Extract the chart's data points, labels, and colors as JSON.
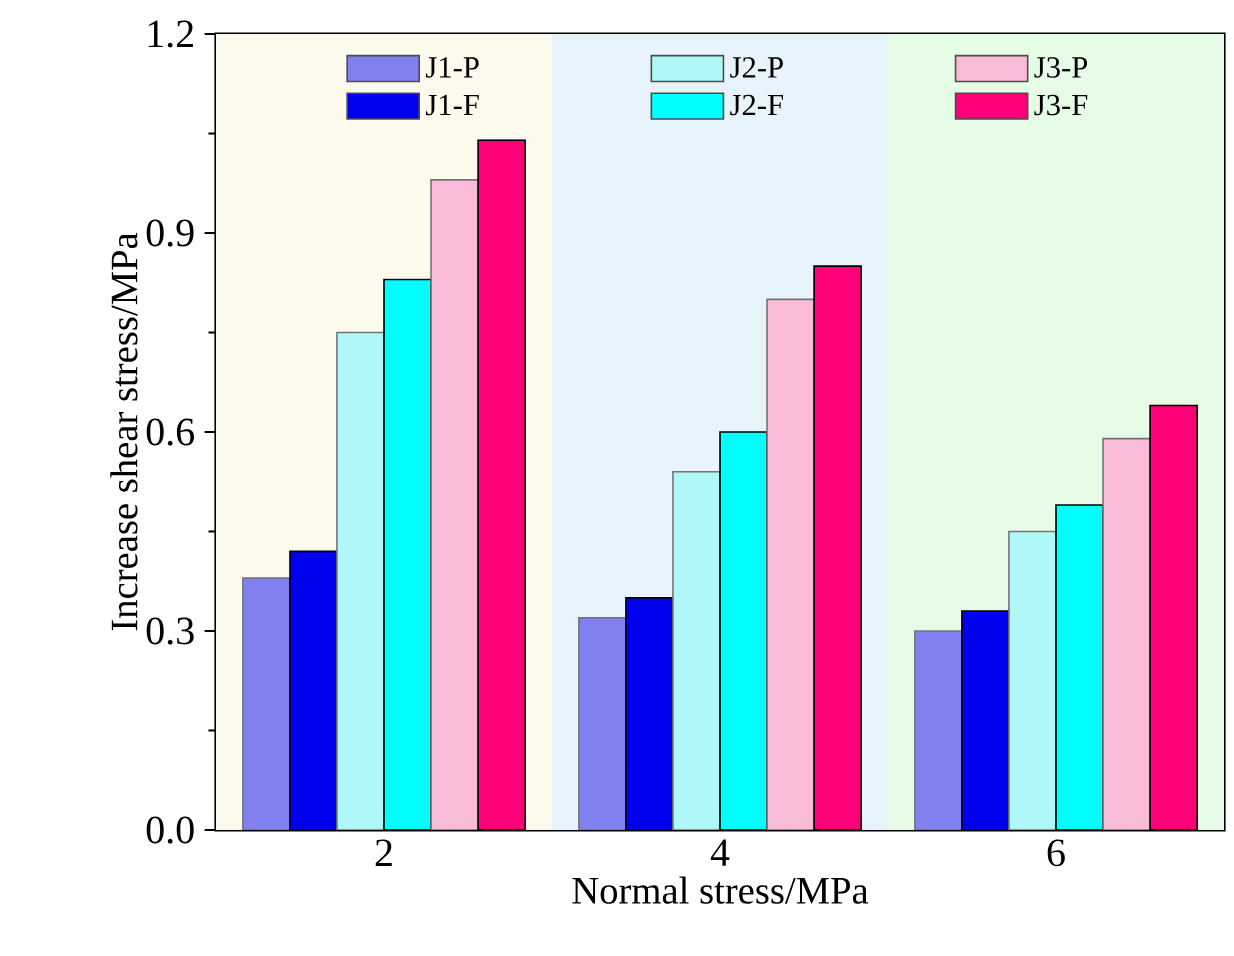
{
  "chart_data": {
    "type": "bar",
    "xlabel": "Normal stress/MPa",
    "ylabel": "Increase shear stress/MPa",
    "x": [
      2,
      4,
      6
    ],
    "xlim": [
      1,
      7
    ],
    "xticks": [
      2,
      4,
      6
    ],
    "ylim": [
      0,
      1.2
    ],
    "yticks": [
      {
        "value": 0,
        "label": "0.0"
      },
      0.3,
      0.6,
      0.9,
      1.2
    ],
    "legend": "top",
    "bands": [
      {
        "axis": "x",
        "from": 1,
        "to": 3,
        "color": "#fcfaec"
      },
      {
        "axis": "x",
        "from": 3,
        "to": 5,
        "color": "#e8f4fc"
      },
      {
        "axis": "x",
        "from": 5,
        "to": 7,
        "color": "#e6fce6"
      }
    ],
    "series": [
      {
        "name": "J1-P",
        "color": "#8080f0",
        "values": [
          0.38,
          0.32,
          0.3
        ]
      },
      {
        "name": "J1-F",
        "color": "#0000ee",
        "values": [
          0.42,
          0.35,
          0.33
        ]
      },
      {
        "name": "J2-P",
        "color": "#b0f8f8",
        "values": [
          0.75,
          0.54,
          0.45
        ]
      },
      {
        "name": "J2-F",
        "color": "#00ffff",
        "values": [
          0.83,
          0.6,
          0.49
        ]
      },
      {
        "name": "J3-P",
        "color": "#f8bcd8",
        "values": [
          0.98,
          0.8,
          0.59
        ]
      },
      {
        "name": "J3-F",
        "color": "#ff0078",
        "values": [
          1.04,
          0.85,
          0.64
        ]
      }
    ]
  }
}
